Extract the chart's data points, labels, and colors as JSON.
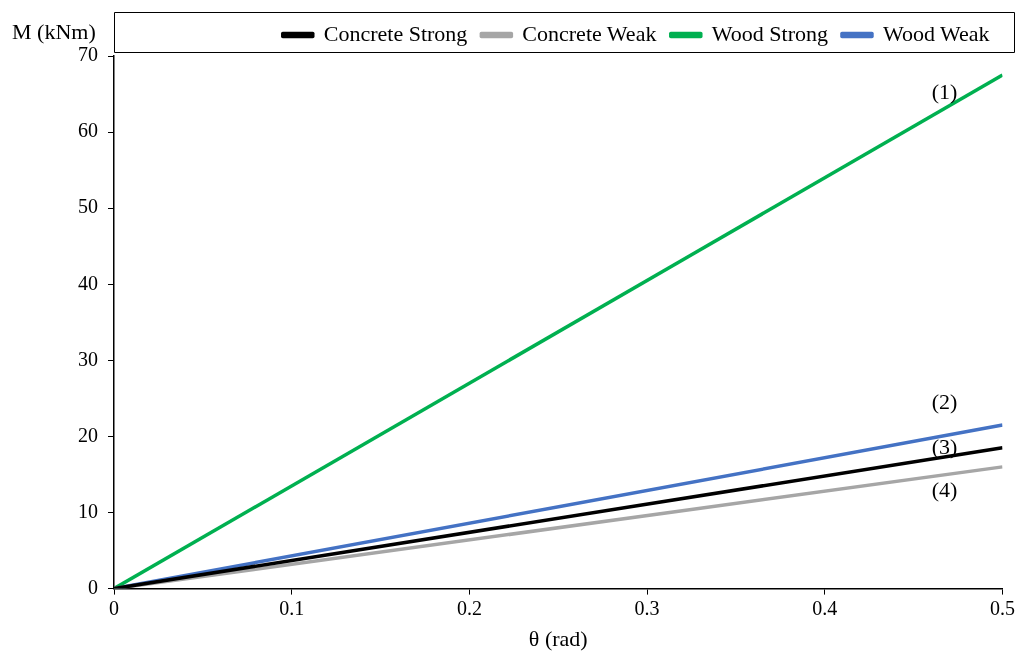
{
  "chart_data": {
    "type": "line",
    "xlabel": "θ (rad)",
    "ylabel": "M (kNm)",
    "x": [
      0,
      0.5
    ],
    "series": [
      {
        "name": "Concrete Strong",
        "color": "#000000",
        "values": [
          0,
          18.5
        ]
      },
      {
        "name": "Concrete Weak",
        "color": "#a6a6a6",
        "values": [
          0,
          16
        ]
      },
      {
        "name": "Wood Strong",
        "color": "#00b050",
        "values": [
          0,
          67.5
        ]
      },
      {
        "name": "Wood Weak",
        "color": "#4472c4",
        "values": [
          0,
          21.5
        ]
      }
    ],
    "xlim": [
      0,
      0.5
    ],
    "xticks": [
      0,
      0.1,
      0.2,
      0.3,
      0.4,
      0.5
    ],
    "ylim": [
      0,
      70
    ],
    "yticks": [
      0,
      10,
      20,
      30,
      40,
      50,
      60,
      70
    ],
    "annotations": [
      "(1)",
      "(2)",
      "(3)",
      "(4)"
    ],
    "grid": false,
    "legend": "top",
    "marker": "none",
    "line_style": "solid"
  }
}
